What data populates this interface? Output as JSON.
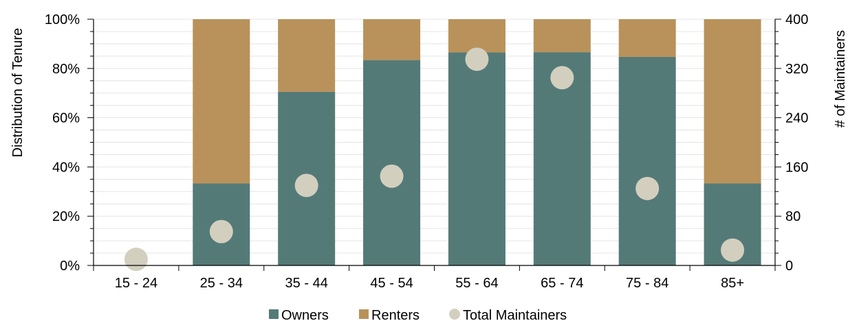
{
  "chart_data": {
    "type": "bar",
    "stacked": true,
    "categories": [
      "15 - 24",
      "25 - 34",
      "35 - 44",
      "45 - 54",
      "55 - 64",
      "65 - 74",
      "75 - 84",
      "85+"
    ],
    "series": [
      {
        "name": "Owners",
        "type": "bar",
        "axis": "left",
        "color": "#547a77",
        "values": [
          0,
          33.3,
          70.5,
          83.4,
          86.5,
          86.6,
          84.7,
          33.3
        ]
      },
      {
        "name": "Renters",
        "type": "bar",
        "axis": "left",
        "color": "#b8925a",
        "values": [
          0,
          66.7,
          29.5,
          16.6,
          13.5,
          13.4,
          15.3,
          66.7
        ]
      },
      {
        "name": "Total Maintainers",
        "type": "scatter",
        "axis": "right",
        "color": "#d3cfbf",
        "values": [
          10,
          55,
          130,
          145,
          335,
          305,
          125,
          25
        ]
      }
    ],
    "ylabel": "Distribution of Tenure",
    "y2label": "# of Maintainers",
    "ylim": [
      0,
      100
    ],
    "y2lim": [
      0,
      400
    ],
    "yticks": [
      "0%",
      "20%",
      "40%",
      "60%",
      "80%",
      "100%"
    ],
    "y2ticks": [
      "0",
      "80",
      "160",
      "240",
      "320",
      "400"
    ],
    "grid": true,
    "legend": "bottom"
  }
}
